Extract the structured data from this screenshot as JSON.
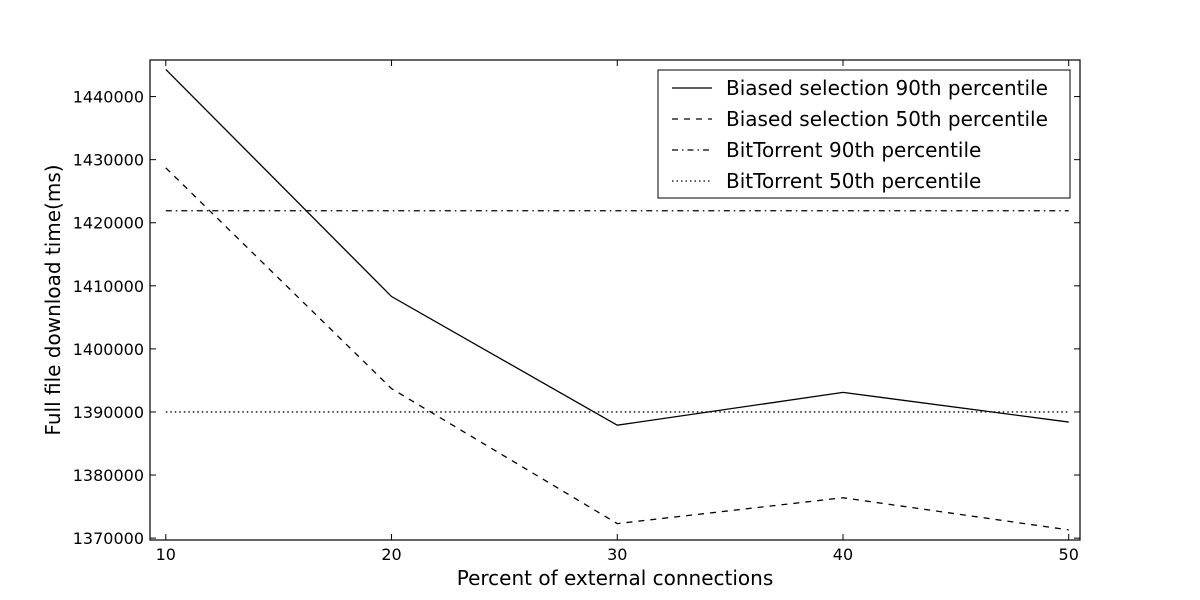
{
  "chart_data": {
    "type": "line",
    "title": "",
    "xlabel": "Percent of external connections",
    "ylabel": "Full file download time(ms)",
    "x": [
      10,
      20,
      30,
      40,
      50
    ],
    "xlim": [
      9.3,
      50.5
    ],
    "ylim": [
      1369700,
      1445800
    ],
    "xticks": [
      10,
      20,
      30,
      40,
      50
    ],
    "yticks": [
      1370000,
      1380000,
      1390000,
      1400000,
      1410000,
      1420000,
      1430000,
      1440000
    ],
    "grid": false,
    "legend_position": "top-right",
    "series": [
      {
        "name": "Biased selection 90th percentile",
        "style": "solid",
        "color": "#000000",
        "values": [
          1444300,
          1408300,
          1387900,
          1393100,
          1388400
        ]
      },
      {
        "name": "Biased selection 50th percentile",
        "style": "dashed",
        "color": "#000000",
        "values": [
          1428700,
          1393700,
          1372300,
          1376400,
          1371300
        ]
      },
      {
        "name": "BitTorrent 90th percentile",
        "style": "dashdot",
        "color": "#000000",
        "values": [
          1421900,
          1421900,
          1421900,
          1421900,
          1421900
        ]
      },
      {
        "name": "BitTorrent 50th percentile",
        "style": "dotted",
        "color": "#000000",
        "values": [
          1390000,
          1390000,
          1390000,
          1390000,
          1390000
        ]
      }
    ]
  }
}
